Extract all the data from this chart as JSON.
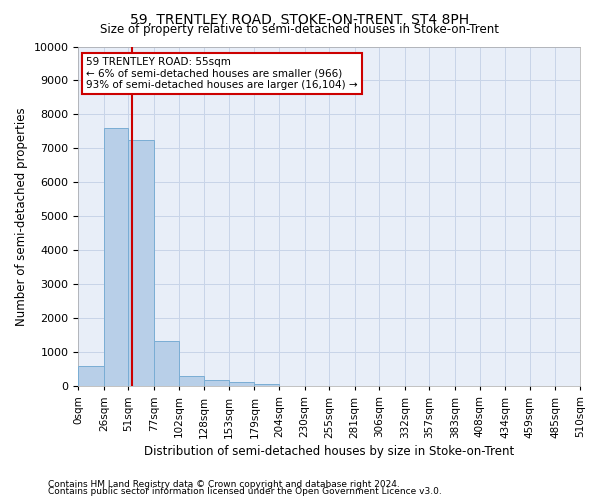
{
  "title": "59, TRENTLEY ROAD, STOKE-ON-TRENT, ST4 8PH",
  "subtitle": "Size of property relative to semi-detached houses in Stoke-on-Trent",
  "xlabel": "Distribution of semi-detached houses by size in Stoke-on-Trent",
  "ylabel": "Number of semi-detached properties",
  "footnote1": "Contains HM Land Registry data © Crown copyright and database right 2024.",
  "footnote2": "Contains public sector information licensed under the Open Government Licence v3.0.",
  "bin_edges": [
    0,
    26,
    51,
    77,
    102,
    128,
    153,
    179,
    204,
    230,
    255,
    281,
    306,
    332,
    357,
    383,
    408,
    434,
    459,
    485,
    510
  ],
  "bar_heights": [
    600,
    7600,
    7250,
    1350,
    300,
    175,
    125,
    75,
    0,
    0,
    0,
    0,
    0,
    0,
    0,
    0,
    0,
    0,
    0,
    0
  ],
  "bar_color": "#b8cfe8",
  "bar_edgecolor": "#7aadd4",
  "vline_x": 55,
  "vline_color": "#cc0000",
  "annotation_text": "59 TRENTLEY ROAD: 55sqm\n← 6% of semi-detached houses are smaller (966)\n93% of semi-detached houses are larger (16,104) →",
  "annotation_box_color": "white",
  "annotation_box_edgecolor": "#cc0000",
  "ylim": [
    0,
    10000
  ],
  "yticks": [
    0,
    1000,
    2000,
    3000,
    4000,
    5000,
    6000,
    7000,
    8000,
    9000,
    10000
  ],
  "grid_color": "#c8d4e8",
  "background_color": "#e8eef8",
  "tick_labels": [
    "0sqm",
    "26sqm",
    "51sqm",
    "77sqm",
    "102sqm",
    "128sqm",
    "153sqm",
    "179sqm",
    "204sqm",
    "230sqm",
    "255sqm",
    "281sqm",
    "306sqm",
    "332sqm",
    "357sqm",
    "383sqm",
    "408sqm",
    "434sqm",
    "459sqm",
    "485sqm",
    "510sqm"
  ]
}
